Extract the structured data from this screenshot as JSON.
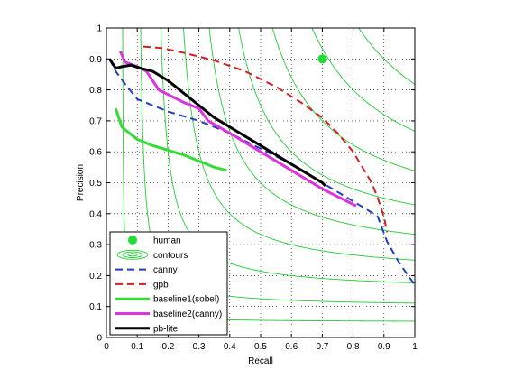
{
  "chart_data": {
    "type": "line",
    "title": "",
    "xlabel": "Recall",
    "ylabel": "Precision",
    "xlim": [
      0,
      1
    ],
    "ylim": [
      0,
      1
    ],
    "xticks": [
      "0",
      "0.1",
      "0.2",
      "0.3",
      "0.4",
      "0.5",
      "0.6",
      "0.7",
      "0.8",
      "0.9",
      "1"
    ],
    "yticks": [
      "0",
      "0.1",
      "0.2",
      "0.3",
      "0.4",
      "0.5",
      "0.6",
      "0.7",
      "0.8",
      "0.9",
      "1"
    ],
    "grid": true,
    "legend_position": "bottom-left",
    "contour_levels": [
      0.1,
      0.2,
      0.3,
      0.4,
      0.5,
      0.6,
      0.7,
      0.8,
      0.9
    ],
    "series": [
      {
        "name": "human",
        "style": "marker",
        "color": "#22dd33",
        "points": [
          [
            0.7,
            0.9
          ]
        ]
      },
      {
        "name": "contours",
        "style": "contour",
        "color": "#22cc33",
        "points": []
      },
      {
        "name": "canny",
        "style": "dashed",
        "color": "#1f3fbf",
        "points": [
          [
            0.01,
            0.9
          ],
          [
            0.03,
            0.86
          ],
          [
            0.06,
            0.82
          ],
          [
            0.1,
            0.77
          ],
          [
            0.2,
            0.73
          ],
          [
            0.3,
            0.7
          ],
          [
            0.4,
            0.66
          ],
          [
            0.5,
            0.61
          ],
          [
            0.6,
            0.56
          ],
          [
            0.7,
            0.5
          ],
          [
            0.8,
            0.44
          ],
          [
            0.85,
            0.41
          ],
          [
            0.88,
            0.39
          ],
          [
            0.91,
            0.31
          ],
          [
            0.95,
            0.24
          ],
          [
            1.0,
            0.17
          ]
        ]
      },
      {
        "name": "gpb",
        "style": "dashed",
        "color": "#cc2222",
        "points": [
          [
            0.12,
            0.94
          ],
          [
            0.18,
            0.935
          ],
          [
            0.25,
            0.92
          ],
          [
            0.35,
            0.895
          ],
          [
            0.45,
            0.86
          ],
          [
            0.55,
            0.81
          ],
          [
            0.63,
            0.76
          ],
          [
            0.7,
            0.71
          ],
          [
            0.75,
            0.66
          ],
          [
            0.8,
            0.6
          ],
          [
            0.83,
            0.55
          ],
          [
            0.86,
            0.5
          ],
          [
            0.88,
            0.45
          ],
          [
            0.9,
            0.39
          ],
          [
            0.91,
            0.34
          ]
        ]
      },
      {
        "name": "baseline1(sobel)",
        "style": "solid",
        "color": "#33dd33",
        "points": [
          [
            0.03,
            0.74
          ],
          [
            0.05,
            0.68
          ],
          [
            0.1,
            0.64
          ],
          [
            0.15,
            0.62
          ],
          [
            0.2,
            0.605
          ],
          [
            0.25,
            0.59
          ],
          [
            0.3,
            0.57
          ],
          [
            0.35,
            0.55
          ],
          [
            0.39,
            0.54
          ]
        ]
      },
      {
        "name": "baseline2(canny)",
        "style": "solid",
        "color": "#dd33dd",
        "points": [
          [
            0.045,
            0.925
          ],
          [
            0.06,
            0.89
          ],
          [
            0.1,
            0.875
          ],
          [
            0.13,
            0.86
          ],
          [
            0.17,
            0.8
          ],
          [
            0.25,
            0.76
          ],
          [
            0.3,
            0.74
          ],
          [
            0.33,
            0.7
          ],
          [
            0.4,
            0.66
          ],
          [
            0.5,
            0.6
          ],
          [
            0.6,
            0.54
          ],
          [
            0.7,
            0.48
          ],
          [
            0.75,
            0.455
          ],
          [
            0.81,
            0.425
          ]
        ]
      },
      {
        "name": "pb-lite",
        "style": "solid",
        "color": "#000000",
        "points": [
          [
            0.01,
            0.9
          ],
          [
            0.03,
            0.87
          ],
          [
            0.05,
            0.875
          ],
          [
            0.08,
            0.88
          ],
          [
            0.11,
            0.87
          ],
          [
            0.15,
            0.86
          ],
          [
            0.2,
            0.83
          ],
          [
            0.25,
            0.79
          ],
          [
            0.3,
            0.75
          ],
          [
            0.35,
            0.71
          ],
          [
            0.4,
            0.68
          ],
          [
            0.45,
            0.65
          ],
          [
            0.5,
            0.62
          ],
          [
            0.55,
            0.59
          ],
          [
            0.6,
            0.56
          ],
          [
            0.65,
            0.53
          ],
          [
            0.7,
            0.5
          ],
          [
            0.71,
            0.49
          ]
        ]
      }
    ]
  }
}
